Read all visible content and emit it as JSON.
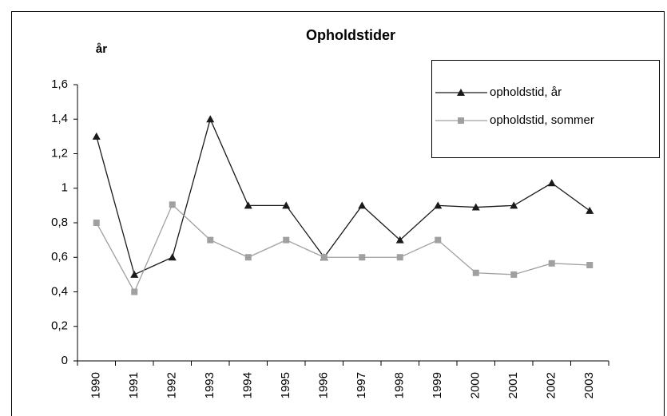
{
  "chart_data": {
    "type": "line",
    "title": "Opholdstider",
    "y_label": "år",
    "categories": [
      "1990",
      "1991",
      "1992",
      "1993",
      "1994",
      "1995",
      "1996",
      "1997",
      "1998",
      "1999",
      "2000",
      "2001",
      "2002",
      "2003"
    ],
    "series": [
      {
        "name": "opholdstid, år",
        "color": "#1a1a1a",
        "marker": "triangle",
        "values": [
          1.3,
          0.5,
          0.6,
          1.4,
          0.9,
          0.9,
          0.6,
          0.9,
          0.7,
          0.9,
          0.89,
          0.9,
          1.03,
          0.87
        ]
      },
      {
        "name": "opholdstid, sommer",
        "color": "#a0a0a0",
        "marker": "square",
        "values": [
          0.8,
          0.4,
          0.905,
          0.7,
          0.6,
          0.7,
          0.6,
          0.6,
          0.6,
          0.7,
          0.51,
          0.5,
          0.565,
          0.555
        ]
      }
    ],
    "ylim": [
      0,
      1.6
    ],
    "yticks": [
      0,
      {
        "value": 0.2,
        "label": "0,2"
      },
      {
        "value": 0.4,
        "label": "0,4"
      },
      {
        "value": 0.6,
        "label": "0,6"
      },
      {
        "value": 0.8,
        "label": "0,8"
      },
      1,
      {
        "value": 1.2,
        "label": "1,2"
      },
      {
        "value": 1.4,
        "label": "1,4"
      },
      {
        "value": 1.6,
        "label": "1,6"
      }
    ],
    "grid": false,
    "legend": "upper right"
  }
}
